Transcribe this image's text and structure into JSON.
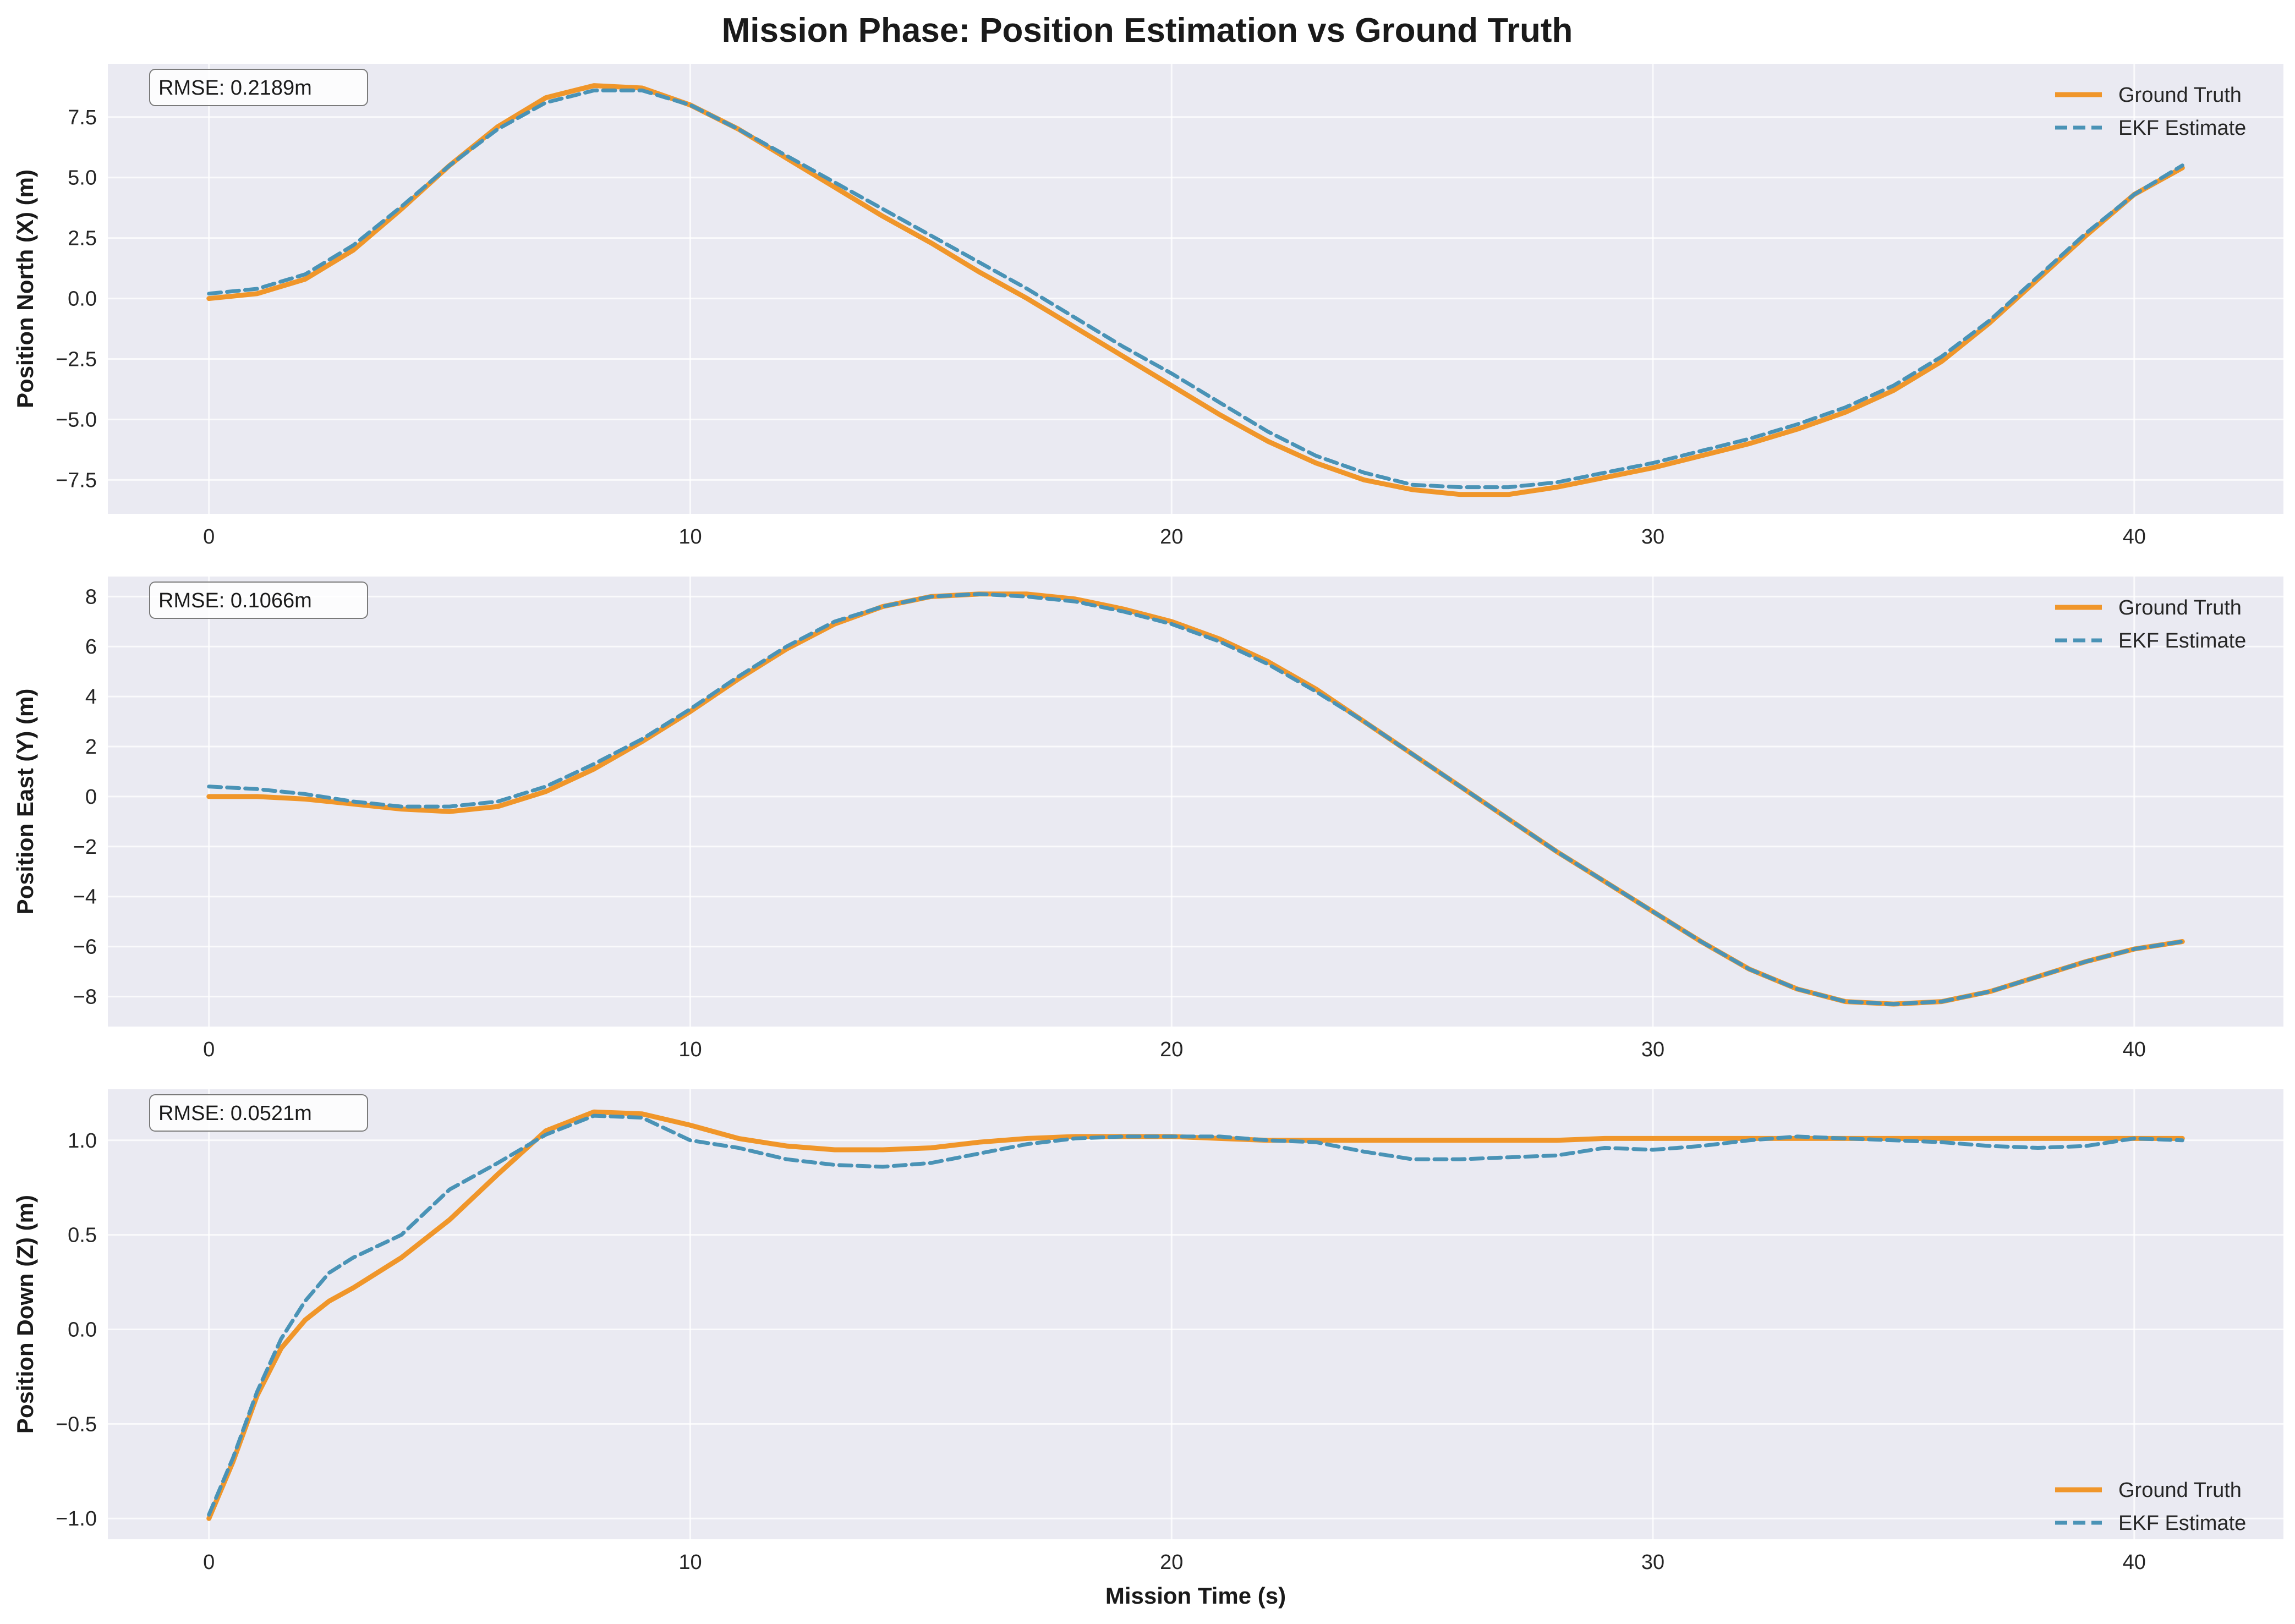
{
  "title": "Mission Phase: Position Estimation vs Ground Truth",
  "xlabel": "Mission Time (s)",
  "colors": {
    "ground_truth": "#f0962a",
    "ekf": "#4a93b6",
    "axes_bg": "#eaeaf2",
    "grid": "#ffffff"
  },
  "chart_data": [
    {
      "type": "line",
      "ylabel": "Position North (X) (m)",
      "rmse": "RMSE: 0.2189m",
      "legend_position": "upper-right",
      "xlim": [
        -2.1,
        43.1
      ],
      "ylim": [
        -8.9,
        9.7
      ],
      "xticks": [
        0,
        10,
        20,
        30,
        40
      ],
      "yticks": [
        -7.5,
        -5.0,
        -2.5,
        0.0,
        2.5,
        5.0,
        7.5
      ],
      "ytick_labels": [
        "−7.5",
        "−5.0",
        "−2.5",
        "0.0",
        "2.5",
        "5.0",
        "7.5"
      ],
      "grid": true,
      "series": [
        {
          "name": "Ground Truth",
          "style": "solid",
          "x": [
            0,
            1,
            2,
            3,
            4,
            5,
            6,
            7,
            8,
            9,
            10,
            11,
            12,
            13,
            14,
            15,
            16,
            17,
            18,
            19,
            20,
            21,
            22,
            23,
            24,
            25,
            26,
            27,
            28,
            29,
            30,
            31,
            32,
            33,
            34,
            35,
            36,
            37,
            38,
            39,
            40,
            41
          ],
          "y": [
            0.0,
            0.2,
            0.8,
            2.0,
            3.7,
            5.5,
            7.1,
            8.3,
            8.8,
            8.7,
            8.0,
            7.0,
            5.8,
            4.6,
            3.4,
            2.3,
            1.1,
            0.0,
            -1.2,
            -2.4,
            -3.6,
            -4.8,
            -5.9,
            -6.8,
            -7.5,
            -7.9,
            -8.1,
            -8.1,
            -7.8,
            -7.4,
            -7.0,
            -6.5,
            -6.0,
            -5.4,
            -4.7,
            -3.8,
            -2.6,
            -1.0,
            0.8,
            2.6,
            4.3,
            5.4
          ]
        },
        {
          "name": "EKF Estimate",
          "style": "dashed",
          "x": [
            0,
            1,
            2,
            3,
            4,
            5,
            6,
            7,
            8,
            9,
            10,
            11,
            12,
            13,
            14,
            15,
            16,
            17,
            18,
            19,
            20,
            21,
            22,
            23,
            24,
            25,
            26,
            27,
            28,
            29,
            30,
            31,
            32,
            33,
            34,
            35,
            36,
            37,
            38,
            39,
            40,
            41
          ],
          "y": [
            0.2,
            0.4,
            1.0,
            2.2,
            3.8,
            5.5,
            7.0,
            8.1,
            8.6,
            8.6,
            8.0,
            7.0,
            5.9,
            4.8,
            3.7,
            2.6,
            1.5,
            0.4,
            -0.8,
            -2.0,
            -3.1,
            -4.3,
            -5.5,
            -6.5,
            -7.2,
            -7.7,
            -7.8,
            -7.8,
            -7.6,
            -7.2,
            -6.8,
            -6.3,
            -5.8,
            -5.2,
            -4.5,
            -3.6,
            -2.4,
            -0.9,
            0.9,
            2.7,
            4.3,
            5.5
          ]
        }
      ]
    },
    {
      "type": "line",
      "ylabel": "Position East (Y) (m)",
      "rmse": "RMSE: 0.1066m",
      "legend_position": "upper-right",
      "xlim": [
        -2.1,
        43.1
      ],
      "ylim": [
        -9.2,
        8.8
      ],
      "xticks": [
        0,
        10,
        20,
        30,
        40
      ],
      "yticks": [
        -8,
        -6,
        -4,
        -2,
        0,
        2,
        4,
        6,
        8
      ],
      "ytick_labels": [
        "−8",
        "−6",
        "−4",
        "−2",
        "0",
        "2",
        "4",
        "6",
        "8"
      ],
      "grid": true,
      "series": [
        {
          "name": "Ground Truth",
          "style": "solid",
          "x": [
            0,
            1,
            2,
            3,
            4,
            5,
            6,
            7,
            8,
            9,
            10,
            11,
            12,
            13,
            14,
            15,
            16,
            17,
            18,
            19,
            20,
            21,
            22,
            23,
            24,
            25,
            26,
            27,
            28,
            29,
            30,
            31,
            32,
            33,
            34,
            35,
            36,
            37,
            38,
            39,
            40,
            41
          ],
          "y": [
            0.0,
            0.0,
            -0.1,
            -0.3,
            -0.5,
            -0.6,
            -0.4,
            0.2,
            1.1,
            2.2,
            3.4,
            4.7,
            5.9,
            6.9,
            7.6,
            8.0,
            8.1,
            8.1,
            7.9,
            7.5,
            7.0,
            6.3,
            5.4,
            4.3,
            3.0,
            1.7,
            0.4,
            -0.9,
            -2.2,
            -3.4,
            -4.6,
            -5.8,
            -6.9,
            -7.7,
            -8.2,
            -8.3,
            -8.2,
            -7.8,
            -7.2,
            -6.6,
            -6.1,
            -5.8
          ]
        },
        {
          "name": "EKF Estimate",
          "style": "dashed",
          "x": [
            0,
            1,
            2,
            3,
            4,
            5,
            6,
            7,
            8,
            9,
            10,
            11,
            12,
            13,
            14,
            15,
            16,
            17,
            18,
            19,
            20,
            21,
            22,
            23,
            24,
            25,
            26,
            27,
            28,
            29,
            30,
            31,
            32,
            33,
            34,
            35,
            36,
            37,
            38,
            39,
            40,
            41
          ],
          "y": [
            0.4,
            0.3,
            0.1,
            -0.2,
            -0.4,
            -0.4,
            -0.2,
            0.4,
            1.3,
            2.3,
            3.5,
            4.8,
            6.0,
            7.0,
            7.6,
            8.0,
            8.1,
            8.0,
            7.8,
            7.4,
            6.9,
            6.2,
            5.3,
            4.2,
            3.0,
            1.7,
            0.4,
            -0.9,
            -2.2,
            -3.4,
            -4.6,
            -5.8,
            -6.9,
            -7.7,
            -8.2,
            -8.3,
            -8.2,
            -7.8,
            -7.2,
            -6.6,
            -6.1,
            -5.8
          ]
        }
      ]
    },
    {
      "type": "line",
      "ylabel": "Position Down (Z) (m)",
      "rmse": "RMSE: 0.0521m",
      "legend_position": "lower-right",
      "xlim": [
        -2.1,
        43.1
      ],
      "ylim": [
        -1.11,
        1.27
      ],
      "xticks": [
        0,
        10,
        20,
        30,
        40
      ],
      "yticks": [
        -1.0,
        -0.5,
        0.0,
        0.5,
        1.0
      ],
      "ytick_labels": [
        "−1.0",
        "−0.5",
        "0.0",
        "0.5",
        "1.0"
      ],
      "grid": true,
      "series": [
        {
          "name": "Ground Truth",
          "style": "solid",
          "x": [
            0,
            0.5,
            1,
            1.5,
            2,
            2.5,
            3,
            4,
            5,
            6,
            7,
            8,
            9,
            10,
            11,
            12,
            13,
            14,
            15,
            16,
            17,
            18,
            19,
            20,
            21,
            22,
            23,
            24,
            25,
            26,
            27,
            28,
            29,
            30,
            31,
            32,
            33,
            34,
            35,
            36,
            37,
            38,
            39,
            40,
            41
          ],
          "y": [
            -1.0,
            -0.7,
            -0.35,
            -0.1,
            0.05,
            0.15,
            0.22,
            0.38,
            0.58,
            0.82,
            1.05,
            1.15,
            1.14,
            1.08,
            1.01,
            0.97,
            0.95,
            0.95,
            0.96,
            0.99,
            1.01,
            1.02,
            1.02,
            1.02,
            1.01,
            1.0,
            1.0,
            1.0,
            1.0,
            1.0,
            1.0,
            1.0,
            1.01,
            1.01,
            1.01,
            1.01,
            1.01,
            1.01,
            1.01,
            1.01,
            1.01,
            1.01,
            1.01,
            1.01,
            1.01
          ]
        },
        {
          "name": "EKF Estimate",
          "style": "dashed",
          "x": [
            0,
            0.5,
            1,
            1.5,
            2,
            2.5,
            3,
            4,
            5,
            6,
            7,
            8,
            9,
            10,
            11,
            12,
            13,
            14,
            15,
            16,
            17,
            18,
            19,
            20,
            21,
            22,
            23,
            24,
            25,
            26,
            27,
            28,
            29,
            30,
            31,
            32,
            33,
            34,
            35,
            36,
            37,
            38,
            39,
            40,
            41
          ],
          "y": [
            -0.98,
            -0.68,
            -0.33,
            -0.05,
            0.15,
            0.3,
            0.38,
            0.5,
            0.74,
            0.88,
            1.03,
            1.13,
            1.12,
            1.0,
            0.96,
            0.9,
            0.87,
            0.86,
            0.88,
            0.93,
            0.98,
            1.01,
            1.02,
            1.02,
            1.02,
            1.0,
            0.99,
            0.94,
            0.9,
            0.9,
            0.91,
            0.92,
            0.96,
            0.95,
            0.97,
            1.0,
            1.02,
            1.01,
            1.0,
            0.99,
            0.97,
            0.96,
            0.97,
            1.01,
            1.0
          ]
        }
      ]
    }
  ]
}
